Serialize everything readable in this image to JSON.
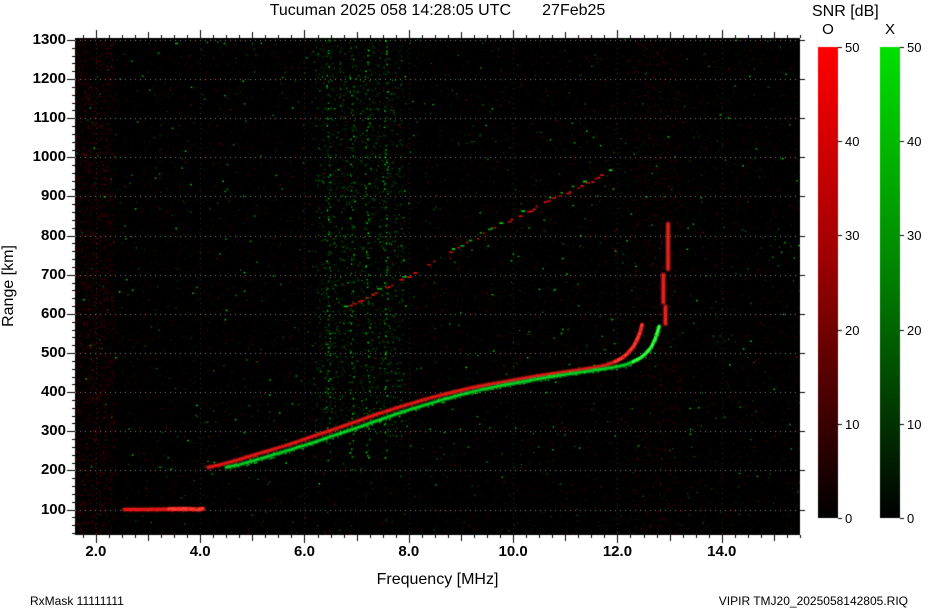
{
  "footer": {
    "left": "RxMask 11111111",
    "right": "VIPIR  TMJ20_2025058142805.RIQ"
  },
  "chart_data": {
    "type": "heatmap",
    "title": "Tucuman 2025 058 14:28:05 UTC       27Feb25",
    "station": "Tucuman",
    "date_label": "27Feb25",
    "xlabel": "Frequency [MHz]",
    "ylabel": "Range [km]",
    "xlim": [
      1.6,
      15.5
    ],
    "ylim": [
      35,
      1305
    ],
    "x_major_ticks": [
      2,
      4,
      6,
      8,
      10,
      12,
      14
    ],
    "x_tick_labels": [
      "2.0",
      "4.0",
      "6.0",
      "8.0",
      "10.0",
      "12.0",
      "14.0"
    ],
    "x_minor_step": 0.25,
    "y_ticks": [
      100,
      200,
      300,
      400,
      500,
      600,
      700,
      800,
      900,
      1000,
      1100,
      1200,
      1300
    ],
    "y_minor_step": 20,
    "grid": true,
    "background": "#000000",
    "colorbar": {
      "title": "SNR [dB]",
      "min": 0,
      "max": 50,
      "ticks": [
        0,
        10,
        20,
        30,
        40,
        50
      ],
      "o_label": "O",
      "x_label": "X",
      "o_color": "#ff0000",
      "x_color": "#00e000"
    },
    "traces": [
      {
        "name": "E-layer echo O-mode",
        "mode": "O",
        "color": "red",
        "width": 3,
        "bright_from": 3.3,
        "points": [
          [
            2.55,
            100
          ],
          [
            3.0,
            100
          ],
          [
            3.4,
            101
          ],
          [
            3.7,
            102
          ],
          [
            3.95,
            100
          ],
          [
            4.05,
            102
          ]
        ]
      },
      {
        "name": "F-layer first hop O-mode",
        "mode": "O",
        "color": "red",
        "width": 2.6,
        "bright_from": 11.9,
        "points": [
          [
            4.15,
            208
          ],
          [
            4.4,
            215
          ],
          [
            4.7,
            226
          ],
          [
            5.0,
            238
          ],
          [
            5.3,
            250
          ],
          [
            5.6,
            262
          ],
          [
            5.9,
            275
          ],
          [
            6.2,
            289
          ],
          [
            6.5,
            302
          ],
          [
            6.8,
            316
          ],
          [
            7.1,
            330
          ],
          [
            7.4,
            344
          ],
          [
            7.7,
            357
          ],
          [
            8.0,
            369
          ],
          [
            8.3,
            381
          ],
          [
            8.6,
            392
          ],
          [
            8.9,
            402
          ],
          [
            9.2,
            411
          ],
          [
            9.5,
            419
          ],
          [
            9.8,
            426
          ],
          [
            10.1,
            433
          ],
          [
            10.4,
            440
          ],
          [
            10.7,
            446
          ],
          [
            11.0,
            452
          ],
          [
            11.3,
            458
          ],
          [
            11.6,
            464
          ],
          [
            11.8,
            470
          ],
          [
            11.95,
            478
          ],
          [
            12.1,
            488
          ],
          [
            12.2,
            500
          ],
          [
            12.3,
            515
          ],
          [
            12.38,
            535
          ],
          [
            12.44,
            555
          ],
          [
            12.47,
            572
          ]
        ]
      },
      {
        "name": "F-layer first hop X-mode",
        "mode": "X",
        "color": "green",
        "width": 2.4,
        "bright_from": 12.2,
        "points": [
          [
            4.5,
            208
          ],
          [
            4.75,
            215
          ],
          [
            5.05,
            226
          ],
          [
            5.35,
            238
          ],
          [
            5.65,
            250
          ],
          [
            5.95,
            262
          ],
          [
            6.25,
            275
          ],
          [
            6.55,
            289
          ],
          [
            6.85,
            302
          ],
          [
            7.15,
            316
          ],
          [
            7.45,
            330
          ],
          [
            7.75,
            344
          ],
          [
            8.05,
            357
          ],
          [
            8.35,
            369
          ],
          [
            8.65,
            381
          ],
          [
            8.95,
            392
          ],
          [
            9.25,
            402
          ],
          [
            9.55,
            411
          ],
          [
            9.85,
            419
          ],
          [
            10.15,
            426
          ],
          [
            10.45,
            433
          ],
          [
            10.75,
            440
          ],
          [
            11.05,
            446
          ],
          [
            11.35,
            452
          ],
          [
            11.65,
            458
          ],
          [
            11.95,
            464
          ],
          [
            12.15,
            470
          ],
          [
            12.3,
            478
          ],
          [
            12.45,
            488
          ],
          [
            12.55,
            500
          ],
          [
            12.65,
            515
          ],
          [
            12.72,
            535
          ],
          [
            12.77,
            555
          ],
          [
            12.8,
            568
          ]
        ]
      },
      {
        "name": "F-layer second hop",
        "mode": "mixed",
        "color": "mixed",
        "style": "dashed",
        "width": 2,
        "points": [
          [
            6.65,
            608
          ],
          [
            7.5,
            665
          ],
          [
            8.3,
            722
          ],
          [
            9.2,
            790
          ],
          [
            10.0,
            845
          ],
          [
            10.8,
            900
          ],
          [
            11.5,
            942
          ],
          [
            11.95,
            972
          ]
        ]
      }
    ],
    "patches": [
      {
        "f": 12.92,
        "r1": 575,
        "r2": 618
      },
      {
        "f": 12.88,
        "r1": 630,
        "r2": 700
      },
      {
        "f": 12.97,
        "r1": 715,
        "r2": 830
      }
    ],
    "noise": {
      "seed": 20250227,
      "green_band": [
        6.2,
        7.9
      ],
      "green_columns": [
        6.45,
        6.9,
        7.2,
        7.55
      ],
      "left_red_band": [
        1.6,
        2.35
      ],
      "asymptote_red_band": [
        12.3,
        13.2
      ]
    }
  }
}
